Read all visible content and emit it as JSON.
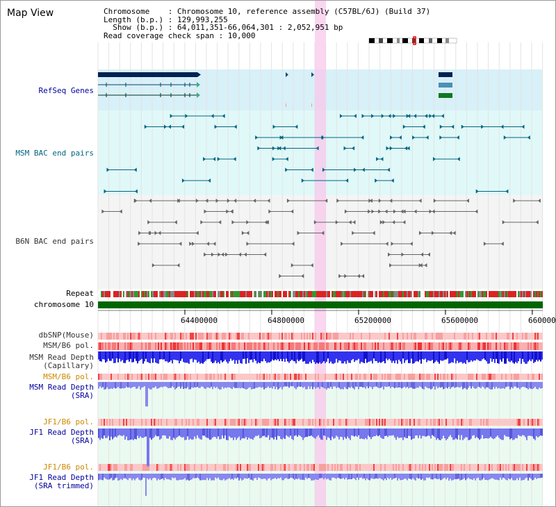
{
  "title": "Map View",
  "info": {
    "line1": "Chromosome    : Chromosome 10, reference assembly (C57BL/6J) (Build 37)",
    "line2": "Length (b.p.) : 129,993,255",
    "line3": "  Show (b.p.) : 64,011,351-66,064,301 : 2,052,951 bp",
    "line4": "Read coverage check span : 10,000"
  },
  "tracks": {
    "refseq": "RefSeq Genes",
    "msm_bac": "MSM BAC end pairs",
    "b6n_bac": "B6N BAC end pairs",
    "repeat": "Repeat",
    "chrom": "chromosome 10",
    "dbsnp": "dbSNP(Mouse)",
    "msm_b6_pol_1": "MSM/B6 pol.",
    "msm_depth_cap": "MSM Read Depth\n(Capillary)",
    "msm_b6_pol_2": "MSM/B6 pol.",
    "msm_depth_sra": "MSM Read Depth\n(SRA)",
    "jf1_b6_pol_1": "JF1/B6 pol.",
    "jf1_depth_sra": "JF1 Read Depth\n(SRA)",
    "jf1_b6_pol_2": "JF1/B6 pol.",
    "jf1_depth_trim": "JF1 Read Depth\n(SRA trimmed)"
  },
  "axis": {
    "ticks": [
      "64400000",
      "64800000",
      "65200000",
      "65600000",
      "66000000"
    ],
    "range": [
      64011351,
      66064301
    ]
  },
  "colors": {
    "navy": "#000099",
    "teal": "#006680",
    "gray_label": "#333333",
    "orange": "#cc8800",
    "highlight": "#f8c8ec"
  }
}
